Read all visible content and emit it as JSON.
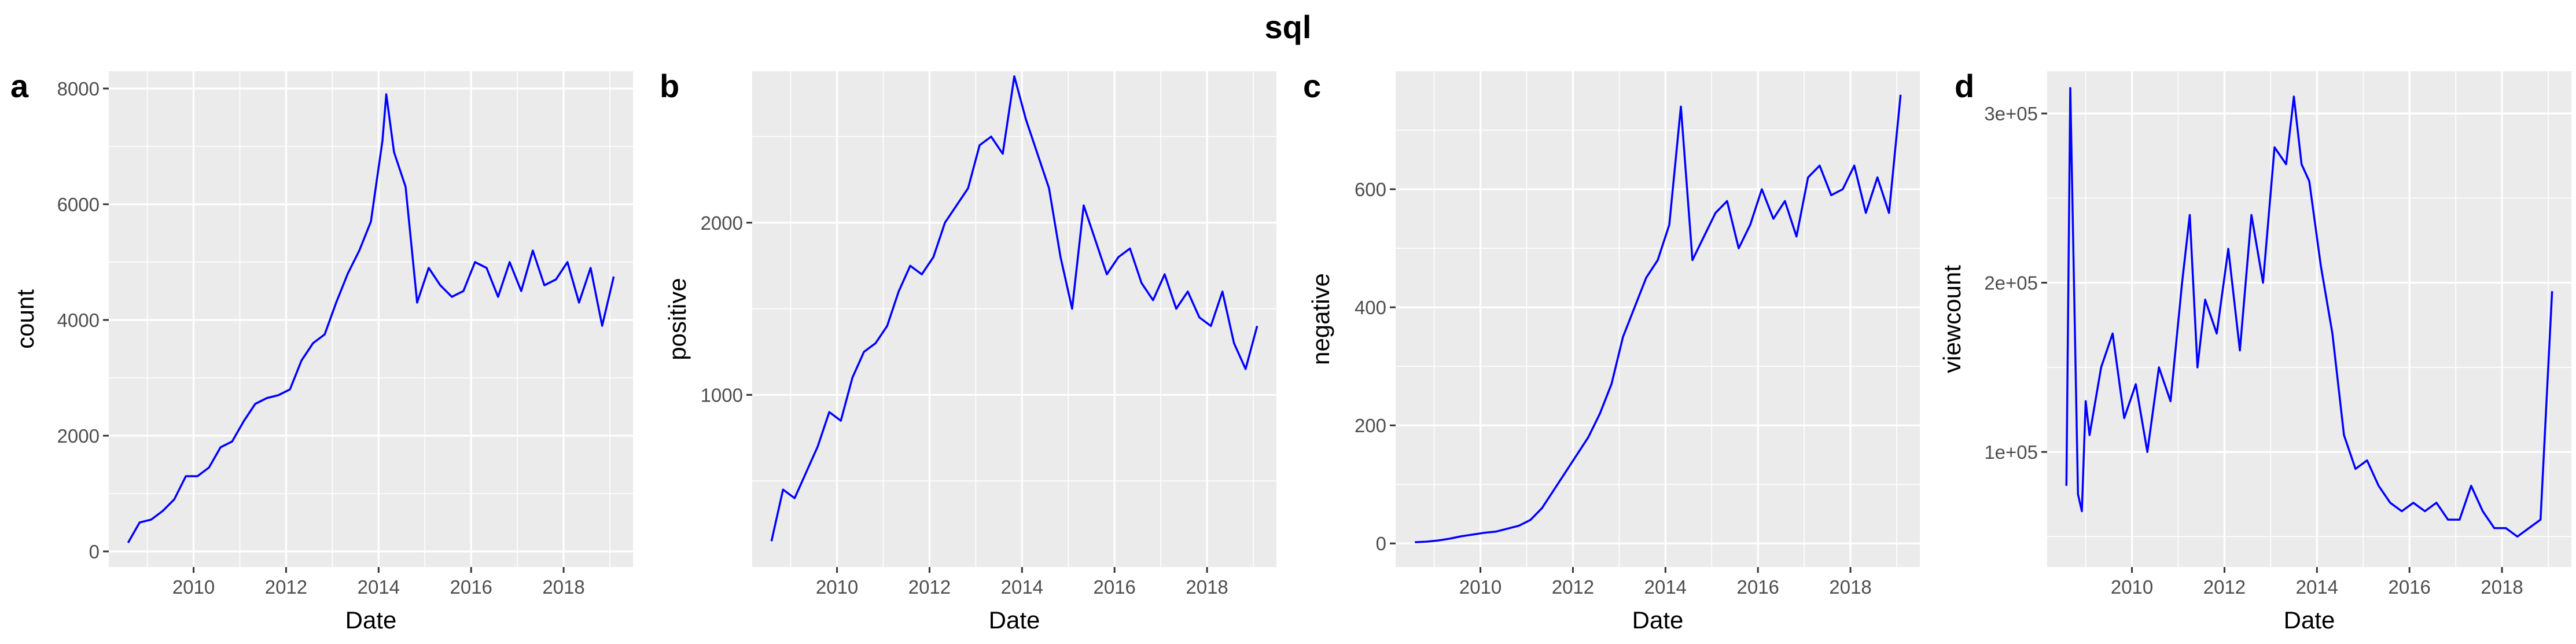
{
  "title": "sql",
  "line_color": "#0000ff",
  "panel_background": "#ebebeb",
  "chart_data": [
    {
      "tag": "a",
      "type": "line",
      "xlabel": "Date",
      "ylabel": "count",
      "xlim": [
        "2008-03-01",
        "2019-07-01"
      ],
      "ylim": [
        -270,
        8300
      ],
      "x_ticks": [
        "2010",
        "2012",
        "2014",
        "2016",
        "2018"
      ],
      "y_ticks": [
        "0",
        "2000",
        "4000",
        "6000",
        "8000"
      ],
      "grid": true,
      "series": [
        {
          "x": [
            "2008-08",
            "2008-11",
            "2009-02",
            "2009-05",
            "2009-08",
            "2009-11",
            "2010-02",
            "2010-05",
            "2010-08",
            "2010-11",
            "2011-02",
            "2011-05",
            "2011-08",
            "2011-11",
            "2012-02",
            "2012-05",
            "2012-08",
            "2012-11",
            "2013-02",
            "2013-05",
            "2013-08",
            "2013-11",
            "2014-02",
            "2014-03",
            "2014-05",
            "2014-08",
            "2014-11",
            "2015-02",
            "2015-05",
            "2015-08",
            "2015-11",
            "2016-02",
            "2016-05",
            "2016-08",
            "2016-11",
            "2017-02",
            "2017-05",
            "2017-08",
            "2017-11",
            "2018-02",
            "2018-05",
            "2018-08",
            "2018-11",
            "2019-02"
          ],
          "y": [
            150,
            500,
            550,
            700,
            900,
            1300,
            1300,
            1450,
            1800,
            1900,
            2250,
            2550,
            2650,
            2700,
            2800,
            3300,
            3600,
            3750,
            4300,
            4800,
            5200,
            5700,
            7100,
            7900,
            6900,
            6300,
            4300,
            4900,
            4600,
            4400,
            4500,
            5000,
            4900,
            4400,
            5000,
            4500,
            5200,
            4600,
            4700,
            5000,
            4300,
            4900,
            3900,
            4750
          ]
        }
      ]
    },
    {
      "tag": "b",
      "type": "line",
      "xlabel": "Date",
      "ylabel": "positive",
      "xlim": [
        "2008-03-01",
        "2019-07-01"
      ],
      "ylim": [
        0,
        2880
      ],
      "x_ticks": [
        "2010",
        "2012",
        "2014",
        "2016",
        "2018"
      ],
      "y_ticks": [
        "1000",
        "2000"
      ],
      "grid": true,
      "series": [
        {
          "x": [
            "2008-08",
            "2008-11",
            "2009-02",
            "2009-05",
            "2009-08",
            "2009-11",
            "2010-02",
            "2010-05",
            "2010-08",
            "2010-11",
            "2011-02",
            "2011-05",
            "2011-08",
            "2011-11",
            "2012-02",
            "2012-05",
            "2012-08",
            "2012-11",
            "2013-02",
            "2013-05",
            "2013-08",
            "2013-11",
            "2014-02",
            "2014-05",
            "2014-08",
            "2014-11",
            "2015-02",
            "2015-05",
            "2015-08",
            "2015-11",
            "2016-02",
            "2016-05",
            "2016-08",
            "2016-11",
            "2017-02",
            "2017-05",
            "2017-08",
            "2017-11",
            "2018-02",
            "2018-05",
            "2018-08",
            "2018-11",
            "2019-02"
          ],
          "y": [
            150,
            450,
            400,
            550,
            700,
            900,
            850,
            1100,
            1250,
            1300,
            1400,
            1600,
            1750,
            1700,
            1800,
            2000,
            2100,
            2200,
            2450,
            2500,
            2400,
            2850,
            2600,
            2400,
            2200,
            1800,
            1500,
            2100,
            1900,
            1700,
            1800,
            1850,
            1650,
            1550,
            1700,
            1500,
            1600,
            1450,
            1400,
            1600,
            1300,
            1150,
            1400
          ]
        }
      ]
    },
    {
      "tag": "c",
      "type": "line",
      "xlabel": "Date",
      "ylabel": "negative",
      "xlim": [
        "2008-03-01",
        "2019-07-01"
      ],
      "ylim": [
        -40,
        800
      ],
      "x_ticks": [
        "2010",
        "2012",
        "2014",
        "2016",
        "2018"
      ],
      "y_ticks": [
        "0",
        "200",
        "400",
        "600"
      ],
      "grid": true,
      "series": [
        {
          "x": [
            "2008-08",
            "2008-11",
            "2009-02",
            "2009-05",
            "2009-08",
            "2009-11",
            "2010-02",
            "2010-05",
            "2010-08",
            "2010-11",
            "2011-02",
            "2011-05",
            "2011-08",
            "2011-11",
            "2012-02",
            "2012-05",
            "2012-08",
            "2012-11",
            "2013-02",
            "2013-05",
            "2013-08",
            "2013-11",
            "2014-02",
            "2014-05",
            "2014-08",
            "2014-11",
            "2015-02",
            "2015-05",
            "2015-08",
            "2015-11",
            "2016-02",
            "2016-05",
            "2016-08",
            "2016-11",
            "2017-02",
            "2017-05",
            "2017-08",
            "2017-11",
            "2018-02",
            "2018-05",
            "2018-08",
            "2018-11",
            "2019-02"
          ],
          "y": [
            2,
            3,
            5,
            8,
            12,
            15,
            18,
            20,
            25,
            30,
            40,
            60,
            90,
            120,
            150,
            180,
            220,
            270,
            350,
            400,
            450,
            480,
            540,
            740,
            480,
            520,
            560,
            580,
            500,
            540,
            600,
            550,
            580,
            520,
            620,
            640,
            590,
            600,
            640,
            560,
            620,
            560,
            760
          ]
        }
      ]
    },
    {
      "tag": "d",
      "type": "line",
      "xlabel": "Date",
      "ylabel": "viewcount",
      "xlim": [
        "2008-03-01",
        "2019-07-01"
      ],
      "ylim": [
        32000,
        325000
      ],
      "x_ticks": [
        "2010",
        "2012",
        "2014",
        "2016",
        "2018"
      ],
      "y_ticks": [
        "1e+05",
        "2e+05",
        "3e+05"
      ],
      "grid": true,
      "series": [
        {
          "x": [
            "2008-08",
            "2008-09",
            "2008-11",
            "2008-12",
            "2009-01",
            "2009-02",
            "2009-05",
            "2009-08",
            "2009-11",
            "2010-02",
            "2010-05",
            "2010-08",
            "2010-11",
            "2011-02",
            "2011-04",
            "2011-06",
            "2011-08",
            "2011-11",
            "2012-02",
            "2012-05",
            "2012-08",
            "2012-11",
            "2013-02",
            "2013-05",
            "2013-07",
            "2013-09",
            "2013-11",
            "2014-02",
            "2014-05",
            "2014-08",
            "2014-11",
            "2015-02",
            "2015-05",
            "2015-08",
            "2015-11",
            "2016-02",
            "2016-05",
            "2016-08",
            "2016-11",
            "2017-02",
            "2017-05",
            "2017-08",
            "2017-11",
            "2018-02",
            "2018-05",
            "2018-08",
            "2018-11",
            "2019-02"
          ],
          "y": [
            80000,
            315000,
            75000,
            65000,
            130000,
            110000,
            150000,
            170000,
            120000,
            140000,
            100000,
            150000,
            130000,
            200000,
            240000,
            150000,
            190000,
            170000,
            220000,
            160000,
            240000,
            200000,
            280000,
            270000,
            310000,
            270000,
            260000,
            210000,
            170000,
            110000,
            90000,
            95000,
            80000,
            70000,
            65000,
            70000,
            65000,
            70000,
            60000,
            60000,
            80000,
            65000,
            55000,
            55000,
            50000,
            55000,
            60000,
            195000
          ]
        }
      ]
    }
  ]
}
